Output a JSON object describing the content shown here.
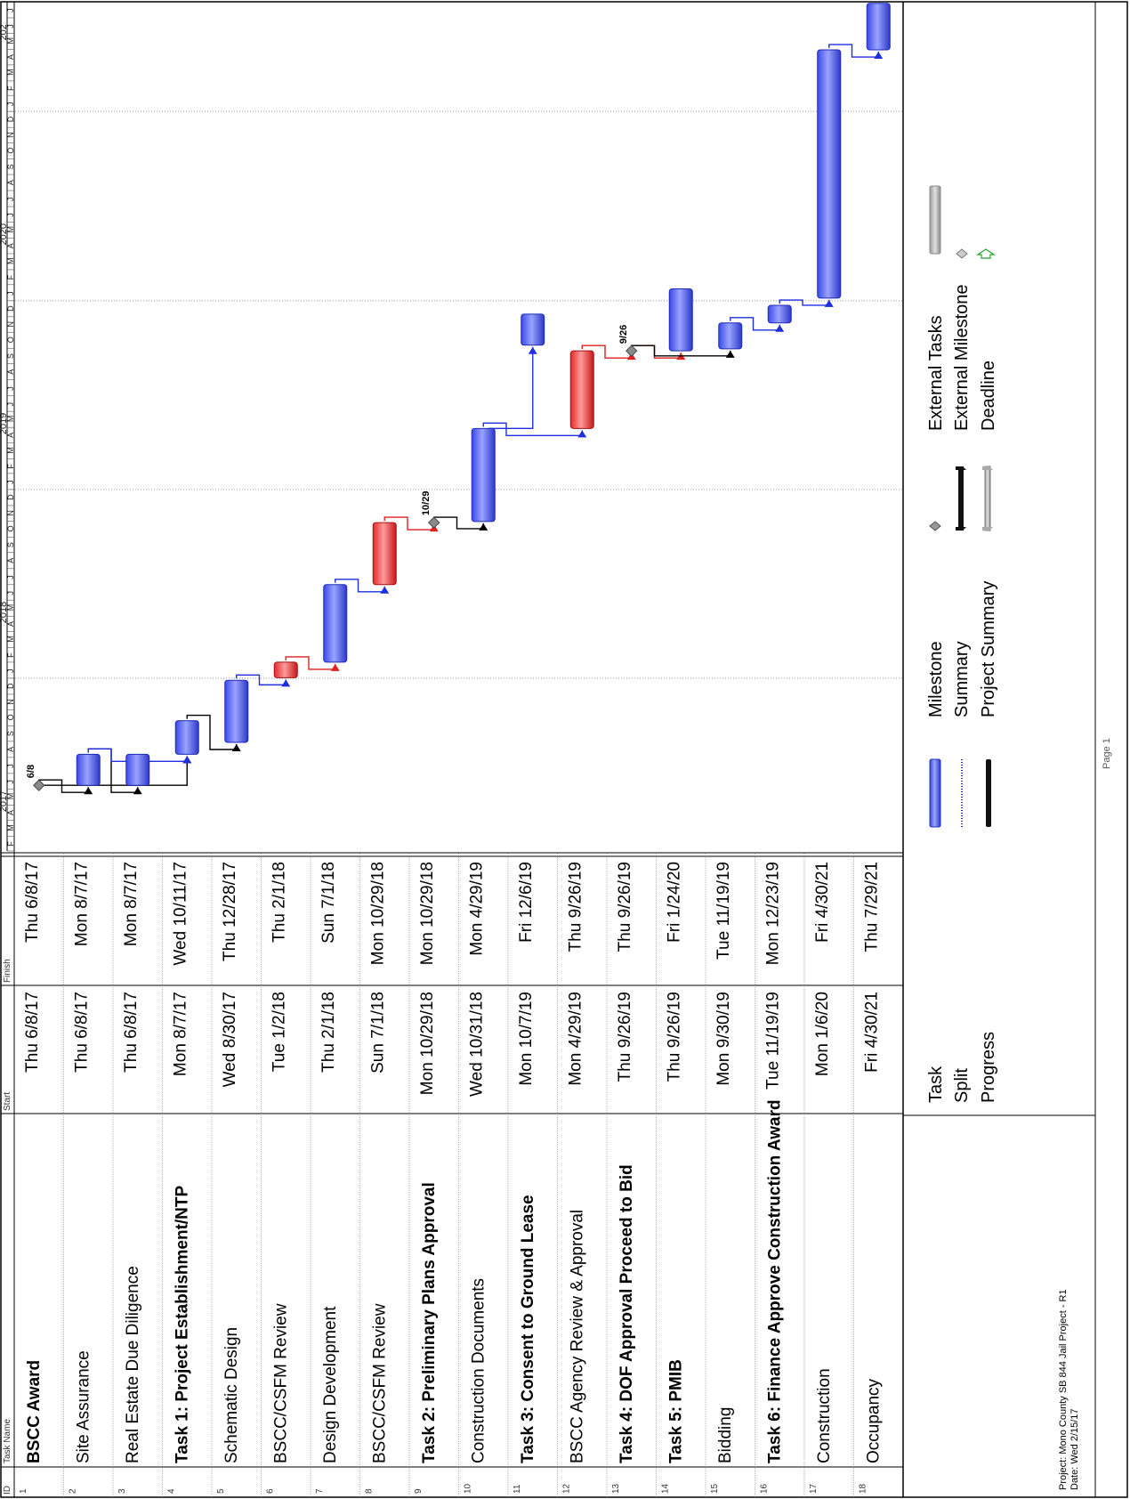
{
  "header": {
    "id": "ID",
    "task_name": "Task Name",
    "start": "Start",
    "finish": "Finish"
  },
  "timescale": {
    "years": [
      {
        "label": "2017",
        "date": "2017-05-01"
      },
      {
        "label": "2018",
        "date": "2018-05-01"
      },
      {
        "label": "2019",
        "date": "2019-05-01"
      },
      {
        "label": "2020",
        "date": "2020-05-01"
      },
      {
        "label": "202",
        "date": "2021-06-01"
      }
    ],
    "months": [
      "F",
      "M",
      "A",
      "M",
      "J",
      "J",
      "A",
      "S",
      "O",
      "N",
      "D",
      "J",
      "F",
      "M",
      "A",
      "M",
      "J",
      "J",
      "A",
      "S",
      "O",
      "N",
      "D",
      "J",
      "F",
      "M",
      "A",
      "M",
      "J",
      "J",
      "A",
      "S",
      "O",
      "N",
      "D",
      "J",
      "F",
      "M",
      "A",
      "M",
      "J",
      "J",
      "A",
      "S",
      "O",
      "N",
      "D",
      "J",
      "F",
      "M",
      "A",
      "M",
      "J",
      "J"
    ],
    "start": "2017-02-01",
    "end": "2021-08-01"
  },
  "tasks": [
    {
      "id": "1",
      "name": "BSCC Award",
      "start": "Thu 6/8/17",
      "finish": "Thu 6/8/17",
      "bold": true,
      "s": "2017-06-08",
      "f": "2017-06-08",
      "type": "milestone",
      "label": "6/8"
    },
    {
      "id": "2",
      "name": "Site Assurance",
      "start": "Thu 6/8/17",
      "finish": "Mon 8/7/17",
      "bold": false,
      "s": "2017-06-08",
      "f": "2017-08-07",
      "type": "task"
    },
    {
      "id": "3",
      "name": "Real Estate Due Diligence",
      "start": "Thu 6/8/17",
      "finish": "Mon 8/7/17",
      "bold": false,
      "s": "2017-06-08",
      "f": "2017-08-07",
      "type": "task"
    },
    {
      "id": "4",
      "name": "Task 1: Project Establishment/NTP",
      "start": "Mon 8/7/17",
      "finish": "Wed 10/11/17",
      "bold": true,
      "s": "2017-08-07",
      "f": "2017-10-11",
      "type": "task"
    },
    {
      "id": "5",
      "name": "Schematic Design",
      "start": "Wed 8/30/17",
      "finish": "Thu 12/28/17",
      "bold": false,
      "s": "2017-08-30",
      "f": "2017-12-28",
      "type": "task"
    },
    {
      "id": "6",
      "name": "BSCC/CSFM Review",
      "start": "Tue 1/2/18",
      "finish": "Thu 2/1/18",
      "bold": false,
      "s": "2018-01-02",
      "f": "2018-02-01",
      "type": "critical"
    },
    {
      "id": "7",
      "name": "Design Development",
      "start": "Thu 2/1/18",
      "finish": "Sun 7/1/18",
      "bold": false,
      "s": "2018-02-01",
      "f": "2018-07-01",
      "type": "task"
    },
    {
      "id": "8",
      "name": "BSCC/CSFM Review",
      "start": "Sun 7/1/18",
      "finish": "Mon 10/29/18",
      "bold": false,
      "s": "2018-07-01",
      "f": "2018-10-29",
      "type": "critical"
    },
    {
      "id": "9",
      "name": "Task 2: Preliminary Plans Approval",
      "start": "Mon 10/29/18",
      "finish": "Mon 10/29/18",
      "bold": true,
      "s": "2018-10-29",
      "f": "2018-10-29",
      "type": "milestone",
      "label": "10/29"
    },
    {
      "id": "10",
      "name": "Construction Documents",
      "start": "Wed 10/31/18",
      "finish": "Mon 4/29/19",
      "bold": false,
      "s": "2018-10-31",
      "f": "2019-04-29",
      "type": "task"
    },
    {
      "id": "11",
      "name": "Task 3: Consent to Ground Lease",
      "start": "Mon 10/7/19",
      "finish": "Fri 12/6/19",
      "bold": true,
      "s": "2019-10-07",
      "f": "2019-12-06",
      "type": "task"
    },
    {
      "id": "12",
      "name": "BSCC Agency Review & Approval",
      "start": "Mon 4/29/19",
      "finish": "Thu 9/26/19",
      "bold": false,
      "s": "2019-04-29",
      "f": "2019-09-26",
      "type": "critical"
    },
    {
      "id": "13",
      "name": "Task 4: DOF Approval Proceed to Bid",
      "start": "Thu 9/26/19",
      "finish": "Thu 9/26/19",
      "bold": true,
      "s": "2019-09-26",
      "f": "2019-09-26",
      "type": "milestone",
      "label": "9/26"
    },
    {
      "id": "14",
      "name": "Task 5: PMIB",
      "start": "Thu 9/26/19",
      "finish": "Fri 1/24/20",
      "bold": true,
      "s": "2019-09-26",
      "f": "2020-01-24",
      "type": "task"
    },
    {
      "id": "15",
      "name": "Bidding",
      "start": "Mon 9/30/19",
      "finish": "Tue 11/19/19",
      "bold": false,
      "s": "2019-09-30",
      "f": "2019-11-19",
      "type": "task"
    },
    {
      "id": "16",
      "name": "Task 6: Finance Approve Construction Award",
      "start": "Tue 11/19/19",
      "finish": "Mon 12/23/19",
      "bold": true,
      "s": "2019-11-19",
      "f": "2019-12-23",
      "type": "task"
    },
    {
      "id": "17",
      "name": "Construction",
      "start": "Mon 1/6/20",
      "finish": "Fri 4/30/21",
      "bold": false,
      "s": "2020-01-06",
      "f": "2021-04-30",
      "type": "task"
    },
    {
      "id": "18",
      "name": "Occupancy",
      "start": "Fri 4/30/21",
      "finish": "Thu 7/29/21",
      "bold": false,
      "s": "2021-04-30",
      "f": "2021-07-29",
      "type": "task"
    }
  ],
  "links": [
    {
      "from": 1,
      "to": 2,
      "color": "#000000"
    },
    {
      "from": 1,
      "to": 4,
      "color": "#000000"
    },
    {
      "from": 2,
      "to": 3,
      "color": "#000000"
    },
    {
      "from": 2,
      "to": 4,
      "color": "#1f2fe0"
    },
    {
      "from": 4,
      "to": 5,
      "color": "#000000"
    },
    {
      "from": 5,
      "to": 6,
      "color": "#1f2fe0"
    },
    {
      "from": 6,
      "to": 7,
      "color": "#e01f1f"
    },
    {
      "from": 7,
      "to": 8,
      "color": "#1f2fe0"
    },
    {
      "from": 8,
      "to": 9,
      "color": "#e01f1f"
    },
    {
      "from": 9,
      "to": 10,
      "color": "#000000"
    },
    {
      "from": 10,
      "to": 11,
      "color": "#1f2fe0"
    },
    {
      "from": 10,
      "to": 12,
      "color": "#1f2fe0"
    },
    {
      "from": 12,
      "to": 13,
      "color": "#e01f1f"
    },
    {
      "from": 13,
      "to": 14,
      "color": "#e01f1f"
    },
    {
      "from": 13,
      "to": 15,
      "color": "#000000"
    },
    {
      "from": 15,
      "to": 16,
      "color": "#1f2fe0"
    },
    {
      "from": 16,
      "to": 17,
      "color": "#1f2fe0"
    },
    {
      "from": 17,
      "to": 18,
      "color": "#1f2fe0"
    }
  ],
  "legend": {
    "col1": [
      "Task",
      "Split",
      "Progress"
    ],
    "col2": [
      "Milestone",
      "Summary",
      "Project Summary"
    ],
    "col3": [
      "External Tasks",
      "External Milestone",
      "Deadline"
    ]
  },
  "footer": {
    "project": "Project: Mono County SB 844 Jail Project - R1",
    "date": "Date: Wed 2/15/17",
    "page": "Page 1"
  },
  "colors": {
    "task": "#4f5ef0",
    "critical": "#e03a3a",
    "milestone": "#8a8a8a"
  },
  "chart_data": {
    "type": "gantt",
    "x_range": [
      "2017-02-01",
      "2021-08-01"
    ],
    "categories": [
      "BSCC Award",
      "Site Assurance",
      "Real Estate Due Diligence",
      "Task 1: Project Establishment/NTP",
      "Schematic Design",
      "BSCC/CSFM Review",
      "Design Development",
      "BSCC/CSFM Review",
      "Task 2: Preliminary Plans Approval",
      "Construction Documents",
      "Task 3: Consent to Ground Lease",
      "BSCC Agency Review & Approval",
      "Task 4: DOF Approval Proceed to Bid",
      "Task 5: PMIB",
      "Bidding",
      "Task 6: Finance Approve Construction Award",
      "Construction",
      "Occupancy"
    ],
    "start": [
      "2017-06-08",
      "2017-06-08",
      "2017-06-08",
      "2017-08-07",
      "2017-08-30",
      "2018-01-02",
      "2018-02-01",
      "2018-07-01",
      "2018-10-29",
      "2018-10-31",
      "2019-10-07",
      "2019-04-29",
      "2019-09-26",
      "2019-09-26",
      "2019-09-30",
      "2019-11-19",
      "2020-01-06",
      "2021-04-30"
    ],
    "finish": [
      "2017-06-08",
      "2017-08-07",
      "2017-08-07",
      "2017-10-11",
      "2017-12-28",
      "2018-02-01",
      "2018-07-01",
      "2018-10-29",
      "2018-10-29",
      "2019-04-29",
      "2019-12-06",
      "2019-09-26",
      "2019-09-26",
      "2020-01-24",
      "2019-11-19",
      "2019-12-23",
      "2021-04-30",
      "2021-07-29"
    ]
  }
}
